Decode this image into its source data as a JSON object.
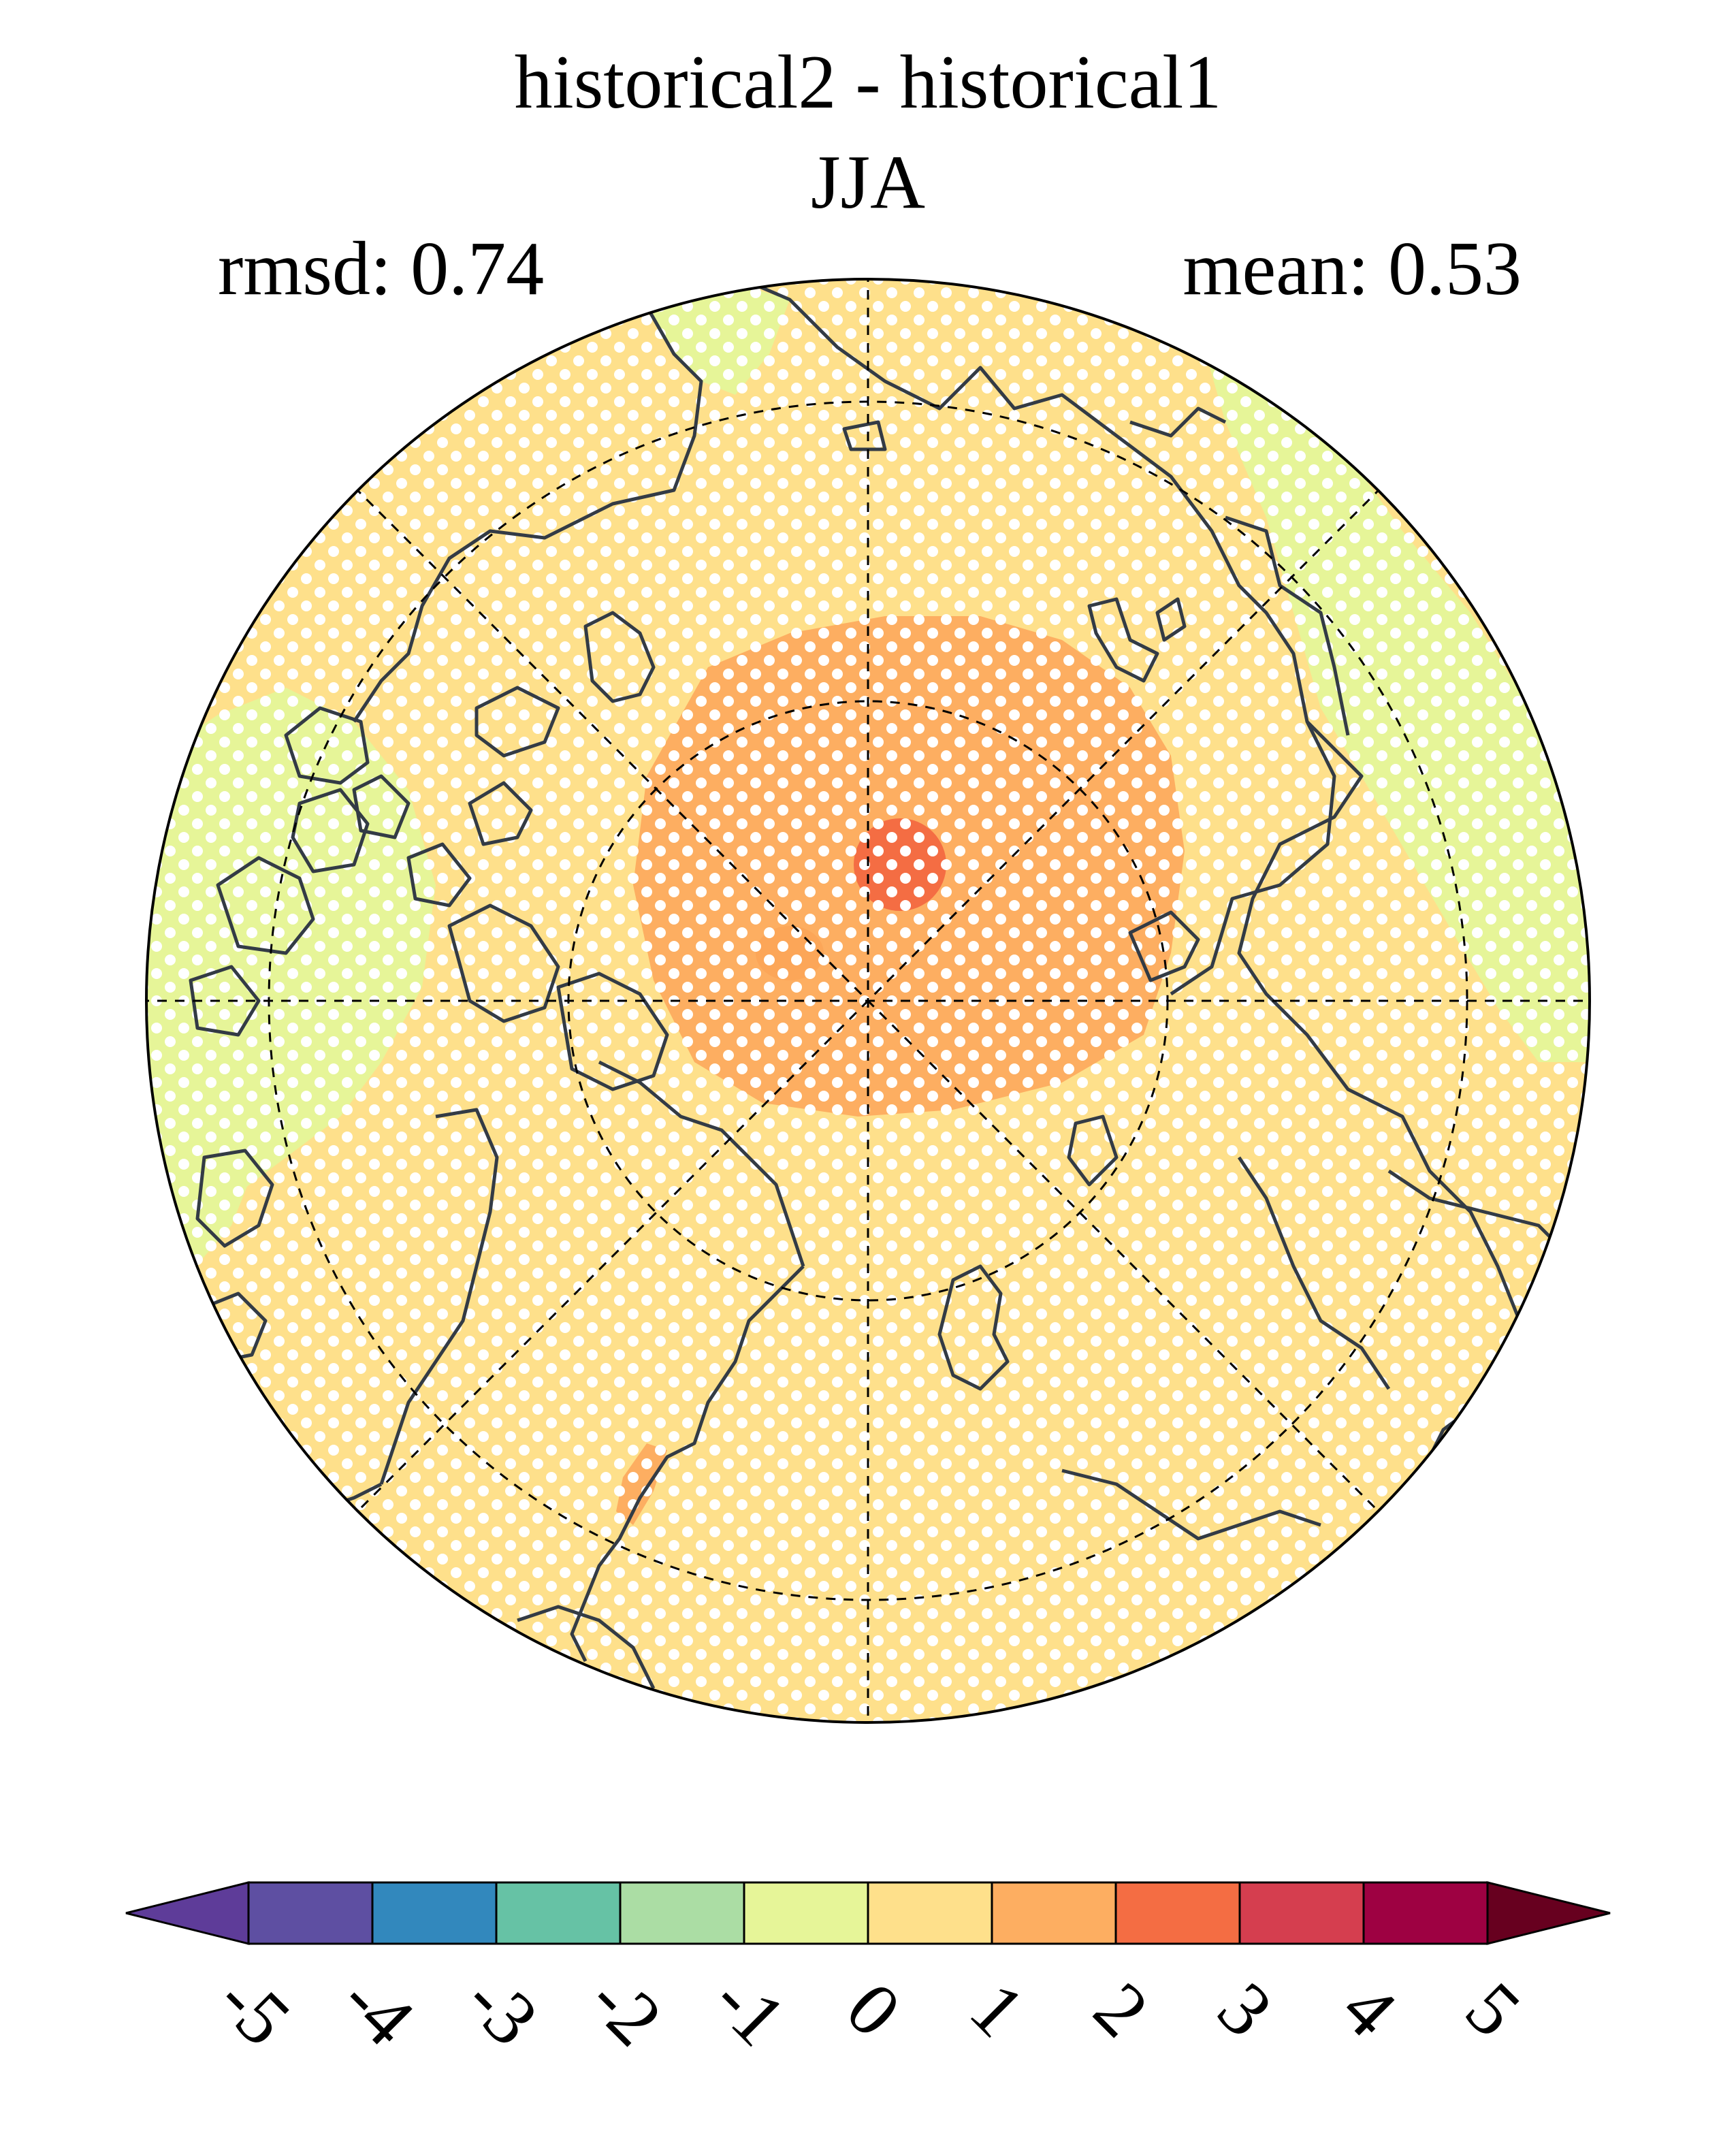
{
  "chart_data": {
    "type": "heatmap",
    "projection": "north-polar-stereographic",
    "title": "historical2 - historical1",
    "subtitle": "JJA",
    "left_annotation": "rmsd: 0.74",
    "right_annotation": "mean: 0.53",
    "stippling": true,
    "grid": true,
    "colorbar": {
      "ticks": [
        "-5",
        "-4",
        "-3",
        "-2",
        "-1",
        "0",
        "1",
        "2",
        "3",
        "4",
        "5"
      ],
      "colors": [
        "#5e3c99",
        "#5e4fa2",
        "#3288bd",
        "#66c2a5",
        "#abdda4",
        "#e6f598",
        "#fee08b",
        "#fdae61",
        "#f46d43",
        "#d53e4f",
        "#9e0142",
        "#67001f"
      ],
      "extend": "both"
    },
    "regions": [
      {
        "level": "0 to 1",
        "color": "#fee08b",
        "extent": "background over most of the Arctic"
      },
      {
        "level": "-1 to 0",
        "color": "#e6f598",
        "extent": "parts of North America, Greenland east coast, Scandinavia edge"
      },
      {
        "level": "1 to 2",
        "color": "#fdae61",
        "extent": "central Arctic Ocean"
      },
      {
        "level": "2 to 3",
        "color": "#f46d43",
        "extent": "near North Pole"
      }
    ]
  }
}
